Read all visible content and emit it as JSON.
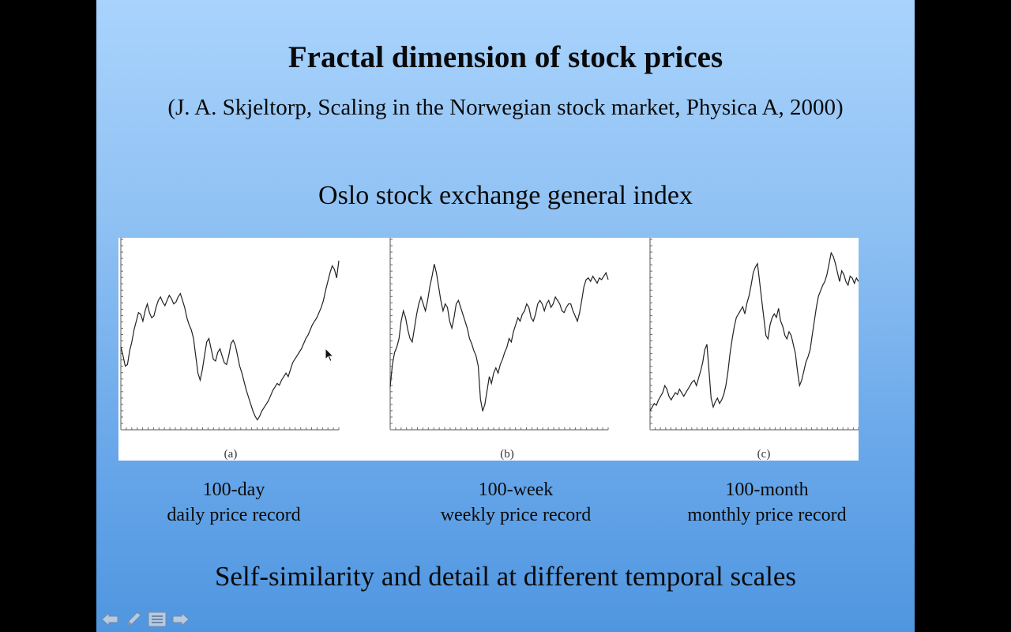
{
  "slide": {
    "title": "Fractal dimension of stock prices",
    "citation": "(J. A. Skjeltorp, Scaling in the Norwegian stock market, Physica A, 2000)",
    "subtitle": "Oslo stock exchange general index",
    "footer": "Self-similarity and detail at different temporal scales"
  },
  "panels": [
    {
      "label": "(a)",
      "caption_line1": "100-day",
      "caption_line2": "daily price record"
    },
    {
      "label": "(b)",
      "caption_line1": "100-week",
      "caption_line2": "weekly price record"
    },
    {
      "label": "(c)",
      "caption_line1": "100-month",
      "caption_line2": "monthly price record"
    }
  ],
  "chart_data": [
    {
      "type": "line",
      "x_count": 100,
      "series": [
        {
          "values": [
            0.45,
            0.4,
            0.34,
            0.35,
            0.43,
            0.48,
            0.55,
            0.6,
            0.65,
            0.64,
            0.6,
            0.66,
            0.7,
            0.65,
            0.62,
            0.63,
            0.68,
            0.72,
            0.74,
            0.71,
            0.69,
            0.72,
            0.75,
            0.73,
            0.7,
            0.71,
            0.74,
            0.76,
            0.72,
            0.68,
            0.62,
            0.58,
            0.55,
            0.5,
            0.4,
            0.3,
            0.26,
            0.32,
            0.4,
            0.48,
            0.5,
            0.44,
            0.38,
            0.37,
            0.42,
            0.44,
            0.4,
            0.36,
            0.35,
            0.4,
            0.47,
            0.49,
            0.46,
            0.4,
            0.34,
            0.3,
            0.25,
            0.2,
            0.16,
            0.12,
            0.08,
            0.05,
            0.03,
            0.05,
            0.08,
            0.1,
            0.12,
            0.14,
            0.17,
            0.2,
            0.22,
            0.24,
            0.23,
            0.26,
            0.28,
            0.3,
            0.28,
            0.32,
            0.36,
            0.38,
            0.4,
            0.42,
            0.44,
            0.47,
            0.5,
            0.52,
            0.55,
            0.58,
            0.6,
            0.62,
            0.65,
            0.68,
            0.72,
            0.78,
            0.83,
            0.88,
            0.92,
            0.9,
            0.85,
            0.95
          ]
        }
      ]
    },
    {
      "type": "line",
      "x_count": 100,
      "series": [
        {
          "values": [
            0.22,
            0.35,
            0.42,
            0.45,
            0.5,
            0.6,
            0.66,
            0.62,
            0.55,
            0.5,
            0.48,
            0.56,
            0.64,
            0.7,
            0.74,
            0.7,
            0.66,
            0.72,
            0.8,
            0.86,
            0.93,
            0.88,
            0.8,
            0.72,
            0.66,
            0.7,
            0.68,
            0.6,
            0.56,
            0.62,
            0.7,
            0.72,
            0.68,
            0.64,
            0.6,
            0.56,
            0.5,
            0.47,
            0.43,
            0.4,
            0.34,
            0.15,
            0.08,
            0.12,
            0.2,
            0.28,
            0.24,
            0.3,
            0.33,
            0.3,
            0.35,
            0.38,
            0.42,
            0.45,
            0.5,
            0.48,
            0.54,
            0.58,
            0.62,
            0.6,
            0.64,
            0.66,
            0.7,
            0.68,
            0.62,
            0.6,
            0.64,
            0.7,
            0.72,
            0.7,
            0.66,
            0.7,
            0.72,
            0.68,
            0.7,
            0.74,
            0.72,
            0.7,
            0.66,
            0.65,
            0.68,
            0.7,
            0.7,
            0.66,
            0.63,
            0.6,
            0.65,
            0.72,
            0.8,
            0.84,
            0.85,
            0.83,
            0.86,
            0.84,
            0.82,
            0.85,
            0.84,
            0.86,
            0.88,
            0.84
          ]
        }
      ]
    },
    {
      "type": "line",
      "x_count": 100,
      "series": [
        {
          "values": [
            0.08,
            0.1,
            0.12,
            0.11,
            0.14,
            0.16,
            0.18,
            0.22,
            0.2,
            0.16,
            0.14,
            0.16,
            0.18,
            0.17,
            0.2,
            0.18,
            0.16,
            0.18,
            0.2,
            0.22,
            0.24,
            0.25,
            0.22,
            0.26,
            0.3,
            0.35,
            0.42,
            0.45,
            0.3,
            0.15,
            0.1,
            0.13,
            0.15,
            0.12,
            0.14,
            0.17,
            0.22,
            0.3,
            0.4,
            0.48,
            0.55,
            0.6,
            0.62,
            0.64,
            0.66,
            0.62,
            0.68,
            0.72,
            0.78,
            0.85,
            0.88,
            0.9,
            0.8,
            0.7,
            0.6,
            0.5,
            0.48,
            0.56,
            0.6,
            0.62,
            0.6,
            0.65,
            0.58,
            0.55,
            0.5,
            0.48,
            0.52,
            0.5,
            0.45,
            0.4,
            0.3,
            0.22,
            0.25,
            0.3,
            0.35,
            0.38,
            0.42,
            0.5,
            0.58,
            0.66,
            0.72,
            0.75,
            0.78,
            0.8,
            0.84,
            0.9,
            0.96,
            0.94,
            0.9,
            0.85,
            0.8,
            0.86,
            0.84,
            0.8,
            0.78,
            0.83,
            0.82,
            0.79,
            0.82,
            0.8
          ]
        }
      ]
    }
  ]
}
